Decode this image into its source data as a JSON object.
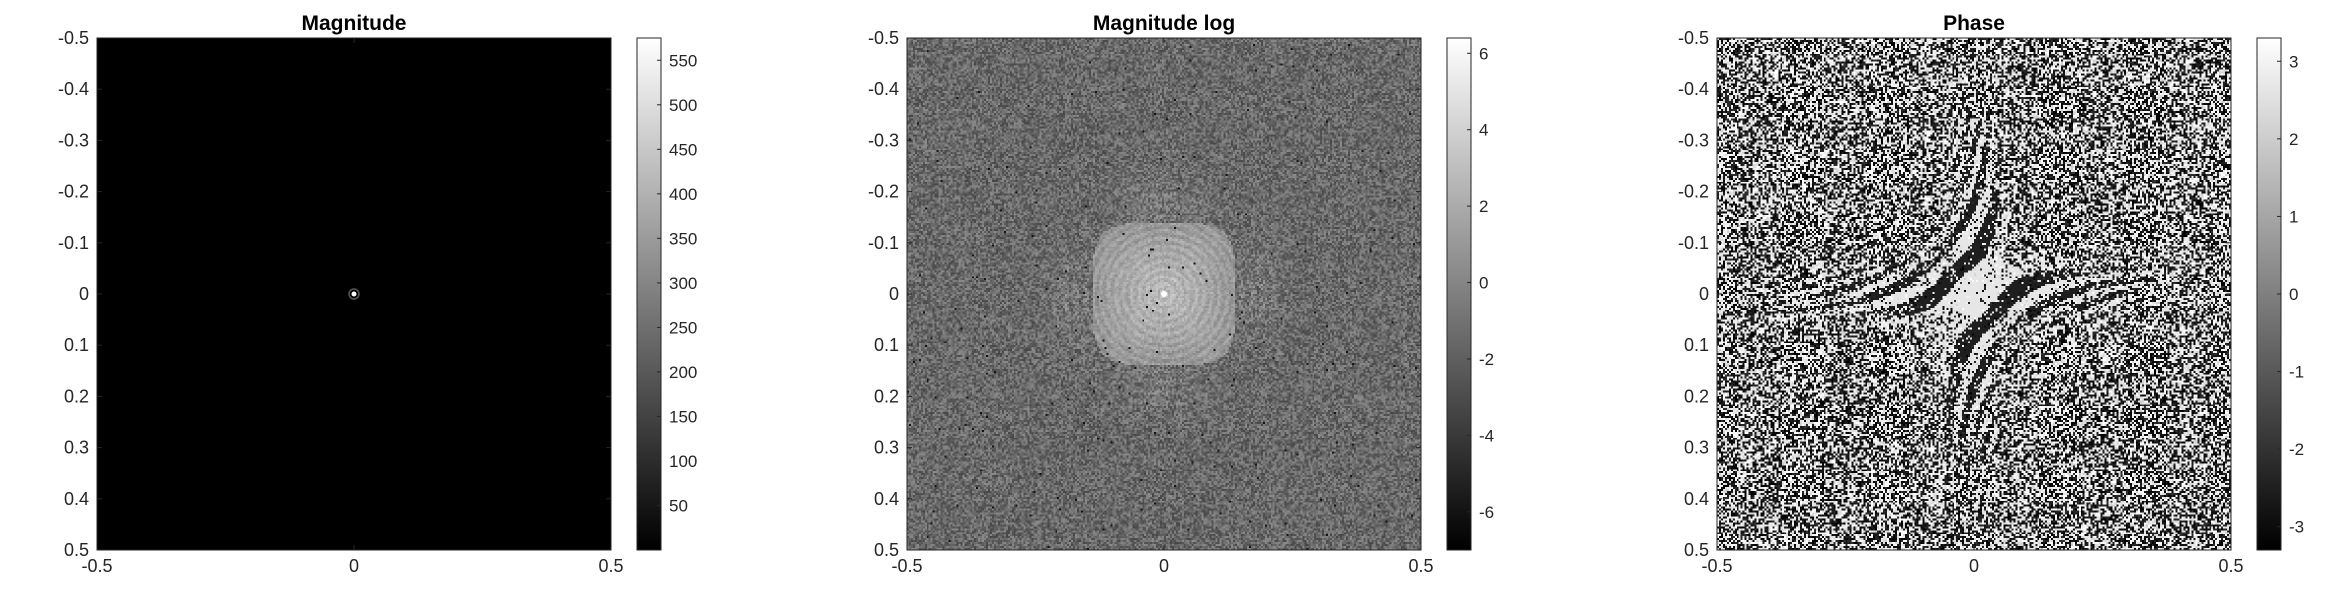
{
  "chart_data": [
    {
      "type": "heatmap",
      "title": "Magnitude",
      "xlim": [
        -0.5,
        0.5
      ],
      "ylim": [
        0.5,
        -0.5
      ],
      "x_ticks": [
        "-0.5",
        "0",
        "0.5"
      ],
      "y_ticks": [
        "-0.5",
        "-0.4",
        "-0.3",
        "-0.2",
        "-0.1",
        "0",
        "0.1",
        "0.2",
        "0.3",
        "0.4",
        "0.5"
      ],
      "colormap": "gray",
      "clim": [
        0,
        575
      ],
      "colorbar_ticks": [
        "50",
        "100",
        "150",
        "200",
        "250",
        "300",
        "350",
        "400",
        "450",
        "500",
        "550"
      ],
      "colorbar_tick_values": [
        50,
        100,
        150,
        200,
        250,
        300,
        350,
        400,
        450,
        500,
        550
      ],
      "peak": {
        "x": 0,
        "y": 0
      }
    },
    {
      "type": "heatmap",
      "title": "Magnitude log",
      "xlim": [
        -0.5,
        0.5
      ],
      "ylim": [
        0.5,
        -0.5
      ],
      "x_ticks": [
        "-0.5",
        "0",
        "0.5"
      ],
      "y_ticks": [
        "-0.5",
        "-0.4",
        "-0.3",
        "-0.2",
        "-0.1",
        "0",
        "0.1",
        "0.2",
        "0.3",
        "0.4",
        "0.5"
      ],
      "colormap": "gray",
      "clim": [
        -7,
        6.4
      ],
      "colorbar_ticks": [
        "6",
        "4",
        "2",
        "0",
        "-2",
        "-4",
        "-6"
      ],
      "colorbar_tick_values": [
        6,
        4,
        2,
        0,
        -2,
        -4,
        -6
      ],
      "peak": {
        "x": 0,
        "y": 0
      }
    },
    {
      "type": "heatmap",
      "title": "Phase",
      "xlim": [
        -0.5,
        0.5
      ],
      "ylim": [
        0.5,
        -0.5
      ],
      "x_ticks": [
        "-0.5",
        "0",
        "0.5"
      ],
      "y_ticks": [
        "-0.5",
        "-0.4",
        "-0.3",
        "-0.2",
        "-0.1",
        "0",
        "0.1",
        "0.2",
        "0.3",
        "0.4",
        "0.5"
      ],
      "colormap": "gray",
      "clim": [
        -3.3,
        3.3
      ],
      "colorbar_ticks": [
        "3",
        "2",
        "1",
        "0",
        "-1",
        "-2",
        "-3"
      ],
      "colorbar_tick_values": [
        3,
        2,
        1,
        0,
        -1,
        -2,
        -3
      ],
      "peak": {
        "x": 0,
        "y": 0
      }
    }
  ]
}
